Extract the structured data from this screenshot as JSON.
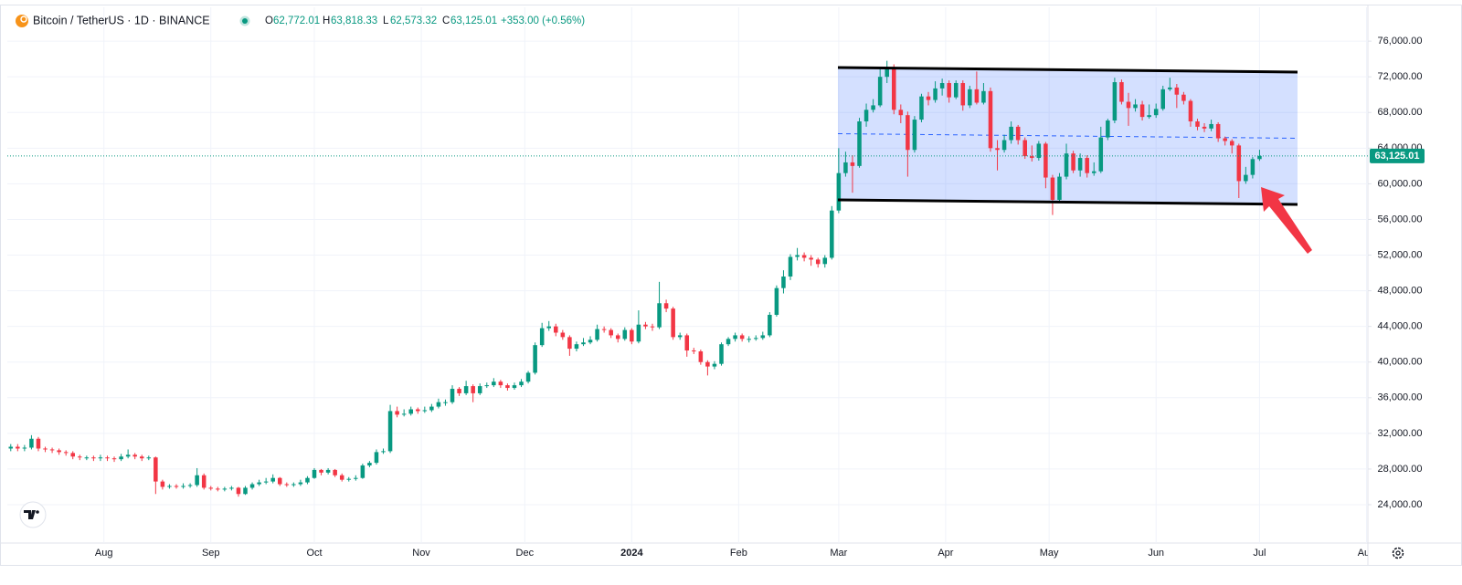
{
  "header": {
    "symbol": "Bitcoin / TetherUS · 1D · BINANCE",
    "ohlc": [
      {
        "label": "O",
        "value": "62,772.01"
      },
      {
        "label": "H",
        "value": "63,818.33"
      },
      {
        "label": "L",
        "value": "62,573.32"
      },
      {
        "label": "C",
        "value": "63,125.01"
      }
    ],
    "change": "+353.00 (+0.56%)"
  },
  "chart_data": {
    "type": "candlestick",
    "up_color": "#089981",
    "down_color": "#f23645",
    "grid": true,
    "ylim": [
      19700,
      79800
    ],
    "xlim": [
      -0.5,
      196.7
    ],
    "yticks": [
      {
        "value": 24000,
        "label": "24,000.00"
      },
      {
        "value": 28000,
        "label": "28,000.00"
      },
      {
        "value": 32000,
        "label": "32,000.00"
      },
      {
        "value": 36000,
        "label": "36,000.00"
      },
      {
        "value": 40000,
        "label": "40,000.00"
      },
      {
        "value": 44000,
        "label": "44,000.00"
      },
      {
        "value": 48000,
        "label": "48,000.00"
      },
      {
        "value": 52000,
        "label": "52,000.00"
      },
      {
        "value": 56000,
        "label": "56,000.00"
      },
      {
        "value": 60000,
        "label": "60,000.00"
      },
      {
        "value": 64000,
        "label": "64,000.00"
      },
      {
        "value": 68000,
        "label": "68,000.00"
      },
      {
        "value": 72000,
        "label": "72,000.00"
      },
      {
        "value": 76000,
        "label": "76,000.00"
      }
    ],
    "xticks": [
      {
        "value": 13.5,
        "label": "Aug"
      },
      {
        "value": 29,
        "label": "Sep"
      },
      {
        "value": 44,
        "label": "Oct"
      },
      {
        "value": 59.5,
        "label": "Nov"
      },
      {
        "value": 74.5,
        "label": "Dec"
      },
      {
        "value": 90,
        "label": "2024"
      },
      {
        "value": 105.5,
        "label": "Feb"
      },
      {
        "value": 120,
        "label": "Mar"
      },
      {
        "value": 135.5,
        "label": "Apr"
      },
      {
        "value": 150.5,
        "label": "May"
      },
      {
        "value": 166,
        "label": "Jun"
      },
      {
        "value": 181,
        "label": "Jul"
      },
      {
        "value": 196.5,
        "label": "Aug"
      }
    ],
    "last_price_label": "63,125.01",
    "candles": [
      [
        30300,
        30800,
        30000,
        30500
      ],
      [
        30500,
        30800,
        30000,
        30300
      ],
      [
        30300,
        30700,
        30000,
        30400
      ],
      [
        30400,
        31800,
        30200,
        31400
      ],
      [
        31400,
        31600,
        30000,
        30300
      ],
      [
        30300,
        30500,
        29900,
        30200
      ],
      [
        30200,
        30400,
        29800,
        30100
      ],
      [
        30100,
        30300,
        29600,
        29900
      ],
      [
        29900,
        30100,
        29500,
        29800
      ],
      [
        29800,
        30000,
        29100,
        29400
      ],
      [
        29400,
        29600,
        29000,
        29300
      ],
      [
        29300,
        29500,
        29000,
        29300
      ],
      [
        29300,
        29500,
        28900,
        29200
      ],
      [
        29200,
        29600,
        28900,
        29300
      ],
      [
        29300,
        29500,
        28900,
        29200
      ],
      [
        29200,
        29400,
        28800,
        29100
      ],
      [
        29100,
        29700,
        28900,
        29400
      ],
      [
        29400,
        30200,
        29200,
        29600
      ],
      [
        29600,
        29800,
        29100,
        29400
      ],
      [
        29400,
        29600,
        28900,
        29200
      ],
      [
        29200,
        29500,
        29000,
        29300
      ],
      [
        29300,
        29400,
        25200,
        26600
      ],
      [
        26600,
        26800,
        25700,
        26000
      ],
      [
        26000,
        26300,
        25800,
        26100
      ],
      [
        26100,
        26300,
        25800,
        26000
      ],
      [
        26000,
        26400,
        25800,
        26100
      ],
      [
        26100,
        26400,
        25900,
        26200
      ],
      [
        26200,
        28100,
        26000,
        27300
      ],
      [
        27300,
        27500,
        25700,
        25900
      ],
      [
        25900,
        26100,
        25600,
        25800
      ],
      [
        25800,
        26000,
        25500,
        25700
      ],
      [
        25700,
        26000,
        25500,
        25800
      ],
      [
        25800,
        26100,
        25600,
        25900
      ],
      [
        25900,
        26000,
        24900,
        25200
      ],
      [
        25200,
        26100,
        25100,
        25900
      ],
      [
        25900,
        26500,
        25700,
        26300
      ],
      [
        26300,
        26800,
        26100,
        26500
      ],
      [
        26500,
        27000,
        26300,
        26600
      ],
      [
        26600,
        27400,
        26400,
        27000
      ],
      [
        27000,
        27100,
        26100,
        26300
      ],
      [
        26300,
        26500,
        26000,
        26200
      ],
      [
        26200,
        26500,
        26000,
        26300
      ],
      [
        26300,
        26800,
        26100,
        26500
      ],
      [
        26500,
        27200,
        26300,
        27000
      ],
      [
        27000,
        28100,
        26900,
        27900
      ],
      [
        27900,
        28000,
        27300,
        27600
      ],
      [
        27600,
        28100,
        27400,
        27900
      ],
      [
        27900,
        28000,
        27100,
        27300
      ],
      [
        27300,
        27500,
        26600,
        26800
      ],
      [
        26800,
        27100,
        26600,
        26900
      ],
      [
        26900,
        27300,
        26700,
        27000
      ],
      [
        27000,
        28600,
        26900,
        28400
      ],
      [
        28400,
        28900,
        28200,
        28700
      ],
      [
        28700,
        30200,
        28500,
        29900
      ],
      [
        29900,
        30300,
        29700,
        30000
      ],
      [
        30000,
        35200,
        29800,
        34500
      ],
      [
        34500,
        35000,
        33800,
        34100
      ],
      [
        34100,
        34700,
        33900,
        34200
      ],
      [
        34200,
        35000,
        34000,
        34700
      ],
      [
        34700,
        34900,
        34200,
        34500
      ],
      [
        34500,
        35000,
        34300,
        34600
      ],
      [
        34600,
        35300,
        34400,
        35000
      ],
      [
        35000,
        35900,
        34800,
        35500
      ],
      [
        35500,
        35800,
        35100,
        35500
      ],
      [
        35500,
        37400,
        35300,
        37000
      ],
      [
        37000,
        37200,
        36200,
        36500
      ],
      [
        36500,
        37900,
        36300,
        37300
      ],
      [
        37300,
        37500,
        35500,
        36500
      ],
      [
        36500,
        37600,
        36300,
        37300
      ],
      [
        37300,
        37700,
        37100,
        37400
      ],
      [
        37400,
        38200,
        37200,
        37800
      ],
      [
        37800,
        38000,
        37100,
        37400
      ],
      [
        37400,
        37600,
        36800,
        37100
      ],
      [
        37100,
        37700,
        36900,
        37400
      ],
      [
        37400,
        38100,
        37200,
        37800
      ],
      [
        37800,
        39000,
        37600,
        38800
      ],
      [
        38800,
        42200,
        38600,
        41900
      ],
      [
        41900,
        44400,
        41700,
        43800
      ],
      [
        43800,
        44600,
        43500,
        44000
      ],
      [
        44000,
        44300,
        42900,
        43300
      ],
      [
        43300,
        43600,
        42500,
        42800
      ],
      [
        42800,
        43000,
        40700,
        41500
      ],
      [
        41500,
        42300,
        41200,
        42000
      ],
      [
        42000,
        42700,
        41800,
        42200
      ],
      [
        42200,
        42900,
        42000,
        42500
      ],
      [
        42500,
        44200,
        42300,
        43700
      ],
      [
        43700,
        44000,
        43300,
        43600
      ],
      [
        43600,
        43800,
        42700,
        43000
      ],
      [
        43000,
        43200,
        42200,
        42600
      ],
      [
        42600,
        43900,
        42400,
        43600
      ],
      [
        43600,
        43800,
        42000,
        42300
      ],
      [
        42300,
        45800,
        42100,
        44200
      ],
      [
        44200,
        44500,
        43700,
        44000
      ],
      [
        44000,
        44300,
        43500,
        43900
      ],
      [
        43900,
        49000,
        43700,
        46600
      ],
      [
        46600,
        47000,
        45600,
        46000
      ],
      [
        46000,
        46200,
        42500,
        42800
      ],
      [
        42800,
        43300,
        42500,
        43000
      ],
      [
        43000,
        43200,
        40600,
        41300
      ],
      [
        41300,
        41600,
        40900,
        41200
      ],
      [
        41200,
        41400,
        39700,
        40000
      ],
      [
        40000,
        40200,
        38500,
        39500
      ],
      [
        39500,
        40100,
        39200,
        39800
      ],
      [
        39800,
        42200,
        39600,
        42000
      ],
      [
        42000,
        42800,
        41800,
        42600
      ],
      [
        42600,
        43300,
        42300,
        43000
      ],
      [
        43000,
        43200,
        42300,
        42600
      ],
      [
        42600,
        42900,
        42200,
        42600
      ],
      [
        42600,
        43000,
        42400,
        42700
      ],
      [
        42700,
        43400,
        42500,
        43000
      ],
      [
        43000,
        45600,
        42800,
        45300
      ],
      [
        45300,
        48600,
        45100,
        48300
      ],
      [
        48300,
        50300,
        47700,
        49600
      ],
      [
        49600,
        52100,
        49200,
        51800
      ],
      [
        51800,
        52800,
        51400,
        52000
      ],
      [
        52000,
        52300,
        51300,
        51700
      ],
      [
        51700,
        52000,
        50800,
        51500
      ],
      [
        51500,
        51700,
        50600,
        51000
      ],
      [
        51000,
        52000,
        50600,
        51700
      ],
      [
        51700,
        57500,
        51500,
        57000
      ],
      [
        57000,
        64000,
        56700,
        61200
      ],
      [
        61200,
        63600,
        60800,
        62400
      ],
      [
        62400,
        63200,
        59000,
        62000
      ],
      [
        62000,
        67400,
        61800,
        67000
      ],
      [
        67000,
        69000,
        66400,
        68300
      ],
      [
        68300,
        69500,
        68000,
        68800
      ],
      [
        68800,
        72900,
        68600,
        72000
      ],
      [
        72000,
        73800,
        71300,
        73100
      ],
      [
        73100,
        73400,
        67800,
        68300
      ],
      [
        68300,
        68900,
        66800,
        67700
      ],
      [
        67700,
        68100,
        60800,
        63800
      ],
      [
        63800,
        67600,
        63500,
        67200
      ],
      [
        67200,
        70100,
        66900,
        69800
      ],
      [
        69800,
        70300,
        68800,
        69400
      ],
      [
        69400,
        71500,
        69100,
        70700
      ],
      [
        70700,
        71800,
        69900,
        71300
      ],
      [
        71300,
        71600,
        69100,
        69700
      ],
      [
        69700,
        71600,
        69500,
        71300
      ],
      [
        71300,
        71600,
        68200,
        68800
      ],
      [
        68800,
        71000,
        68500,
        70600
      ],
      [
        70600,
        72600,
        68900,
        69100
      ],
      [
        69100,
        71300,
        68900,
        70400
      ],
      [
        70400,
        70800,
        63600,
        64000
      ],
      [
        64000,
        64900,
        61500,
        63800
      ],
      [
        63800,
        65500,
        63500,
        64900
      ],
      [
        64900,
        67000,
        64500,
        66400
      ],
      [
        66400,
        66600,
        64400,
        64900
      ],
      [
        64900,
        65200,
        62800,
        63100
      ],
      [
        63100,
        64300,
        62500,
        62900
      ],
      [
        62900,
        64800,
        62600,
        64500
      ],
      [
        64500,
        64700,
        59500,
        60700
      ],
      [
        60700,
        61000,
        56500,
        58200
      ],
      [
        58200,
        61200,
        58000,
        60800
      ],
      [
        60800,
        64500,
        60500,
        63400
      ],
      [
        63400,
        63700,
        61200,
        61500
      ],
      [
        61500,
        63400,
        60800,
        62900
      ],
      [
        62900,
        63200,
        60700,
        61200
      ],
      [
        61200,
        62400,
        60900,
        61400
      ],
      [
        61400,
        66400,
        61200,
        65200
      ],
      [
        65200,
        67300,
        64900,
        67100
      ],
      [
        67100,
        71900,
        66800,
        71400
      ],
      [
        71400,
        71700,
        68900,
        69200
      ],
      [
        69200,
        70200,
        66500,
        68500
      ],
      [
        68500,
        69500,
        68100,
        68900
      ],
      [
        68900,
        69300,
        67100,
        67500
      ],
      [
        67500,
        68900,
        67300,
        67700
      ],
      [
        67700,
        69000,
        67400,
        68400
      ],
      [
        68400,
        71000,
        68200,
        70600
      ],
      [
        70600,
        71900,
        70400,
        70800
      ],
      [
        70800,
        71200,
        68500,
        70000
      ],
      [
        70000,
        70300,
        68900,
        69300
      ],
      [
        69300,
        69500,
        66400,
        67000
      ],
      [
        67000,
        67300,
        66000,
        66400
      ],
      [
        66400,
        66800,
        65800,
        66200
      ],
      [
        66200,
        67200,
        65900,
        66700
      ],
      [
        66700,
        66900,
        64700,
        65100
      ],
      [
        65100,
        65300,
        64300,
        64800
      ],
      [
        64800,
        65000,
        63400,
        64300
      ],
      [
        64300,
        64500,
        58400,
        60300
      ],
      [
        60300,
        61900,
        60000,
        61000
      ],
      [
        61000,
        63000,
        60600,
        62772
      ],
      [
        62772.01,
        63818.33,
        62573.32,
        63125.01
      ]
    ]
  }
}
